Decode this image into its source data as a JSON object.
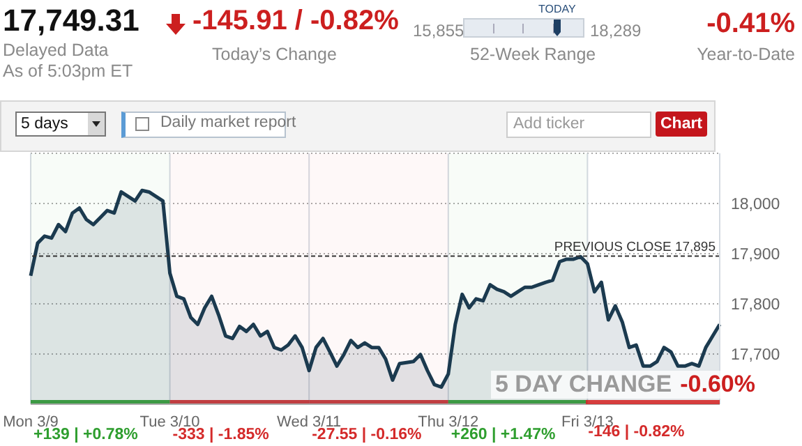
{
  "chart_data": {
    "type": "area",
    "categories": [
      "Mon 3/9",
      null,
      null,
      null,
      null,
      null,
      null,
      null,
      null,
      null,
      null,
      null,
      null,
      null,
      null,
      null,
      null,
      null,
      null,
      null,
      "Tue 3/10",
      null,
      null,
      null,
      null,
      null,
      null,
      null,
      null,
      null,
      null,
      null,
      null,
      null,
      null,
      null,
      null,
      null,
      null,
      null,
      "Wed 3/11",
      null,
      null,
      null,
      null,
      null,
      null,
      null,
      null,
      null,
      null,
      null,
      null,
      null,
      null,
      null,
      null,
      null,
      null,
      null,
      "Thu 3/12",
      null,
      null,
      null,
      null,
      null,
      null,
      null,
      null,
      null,
      null,
      null,
      null,
      null,
      null,
      null,
      null,
      null,
      null,
      null,
      "Fri 3/13",
      null,
      null,
      null,
      null,
      null,
      null,
      null,
      null,
      null,
      null,
      null,
      null,
      null,
      null,
      null,
      null,
      null,
      null,
      null
    ],
    "series": [
      {
        "color": "#1b3a4f",
        "values": [
          17856,
          17921,
          17935,
          17931,
          17958,
          17944,
          17981,
          17991,
          17968,
          17958,
          17972,
          17986,
          17981,
          18023,
          18014,
          18005,
          18026,
          18023,
          18014,
          18005,
          17861,
          17815,
          17810,
          17773,
          17759,
          17792,
          17815,
          17778,
          17736,
          17731,
          17755,
          17745,
          17759,
          17736,
          17745,
          17713,
          17708,
          17718,
          17736,
          17713,
          17667,
          17713,
          17731,
          17704,
          17676,
          17699,
          17727,
          17713,
          17722,
          17713,
          17713,
          17690,
          17648,
          17681,
          17683,
          17685,
          17699,
          17667,
          17639,
          17634,
          17660,
          17759,
          17819,
          17792,
          17810,
          17806,
          17838,
          17829,
          17824,
          17815,
          17824,
          17833,
          17833,
          17838,
          17843,
          17847,
          17884,
          17889,
          17889,
          17894,
          17880,
          17824,
          17843,
          17768,
          17796,
          17764,
          17713,
          17718,
          17676,
          17676,
          17685,
          17713,
          17704,
          17676,
          17676,
          17681,
          17676,
          17713,
          17736,
          17759
        ]
      }
    ],
    "ylim": [
      17600,
      18100
    ],
    "yticks": [
      {
        "value": 17700,
        "label": "17,700"
      },
      {
        "value": 17800,
        "label": "17,800"
      },
      {
        "value": 17900,
        "label": "17,900"
      },
      {
        "value": 18000,
        "label": "18,000"
      }
    ],
    "grid": true,
    "ref_lines": [
      {
        "axis": "y",
        "value": 17895,
        "label": "PREVIOUS CLOSE 17,895",
        "color": "#333333",
        "line_style": "dashed"
      }
    ],
    "bands": [
      {
        "axis": "x",
        "from": "Mon 3/9",
        "to": "Tue 3/10",
        "label": "+139 | +0.78%",
        "color": "#2e9e2e"
      },
      {
        "axis": "x",
        "from": "Tue 3/10",
        "to": "Wed 3/11",
        "label": "-333 | -1.85%",
        "color": "#d42a2a"
      },
      {
        "axis": "x",
        "from": "Wed 3/11",
        "to": "Thu 3/12",
        "label": "-27.55 | -0.16%",
        "color": "#d42a2a"
      },
      {
        "axis": "x",
        "from": "Thu 3/12",
        "to": "Fri 3/13",
        "label": "+260 | +1.47%",
        "color": "#2e9e2e"
      }
    ],
    "annotations": [
      "17,749.31",
      "Delayed Data",
      "As of 5:03pm ET",
      "-145.91 / -0.82%",
      "Today’s Change",
      "15,855",
      "TODAY",
      "18,289",
      "52-Week Range",
      "-0.41%",
      "Year-to-Date",
      "5 days",
      "Daily market report",
      "Add ticker",
      "Chart",
      "5 DAY CHANGE",
      "-0.60%",
      "-146 | -0.82%"
    ]
  }
}
